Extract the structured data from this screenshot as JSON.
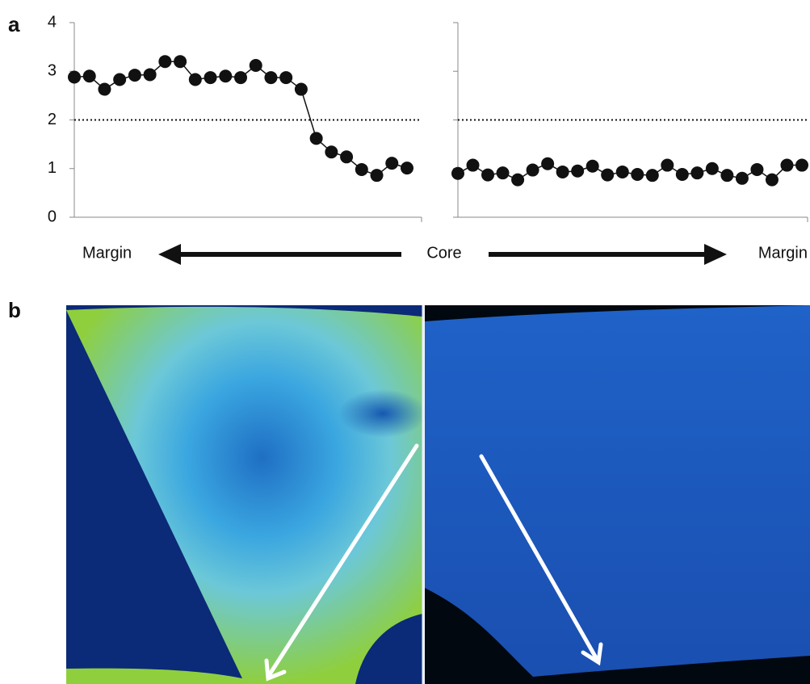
{
  "panel_labels": [
    "a",
    "b"
  ],
  "direction_labels": {
    "left": "Margin",
    "center": "Core",
    "right": "Margin"
  },
  "chart_data": [
    {
      "type": "line",
      "color": "#111111",
      "ylim": [
        0,
        4
      ],
      "yticks": [
        0,
        1,
        2,
        3,
        4
      ],
      "tick_labels": true,
      "threshold": 2,
      "values": [
        2.88,
        2.9,
        2.63,
        2.83,
        2.92,
        2.93,
        3.2,
        3.2,
        2.83,
        2.87,
        2.9,
        2.87,
        3.12,
        2.87,
        2.87,
        2.63,
        1.62,
        1.34,
        1.24,
        0.98,
        0.86,
        1.11,
        1.01
      ]
    },
    {
      "type": "line",
      "color": "#111111",
      "ylim": [
        0,
        4
      ],
      "yticks": [
        0,
        1,
        2,
        3,
        4
      ],
      "tick_labels": false,
      "threshold": 2,
      "values": [
        0.9,
        1.07,
        0.87,
        0.91,
        0.77,
        0.97,
        1.1,
        0.93,
        0.95,
        1.05,
        0.87,
        0.93,
        0.88,
        0.86,
        1.07,
        0.88,
        0.91,
        1.0,
        0.86,
        0.8,
        0.98,
        0.77,
        1.07,
        1.07
      ]
    }
  ]
}
